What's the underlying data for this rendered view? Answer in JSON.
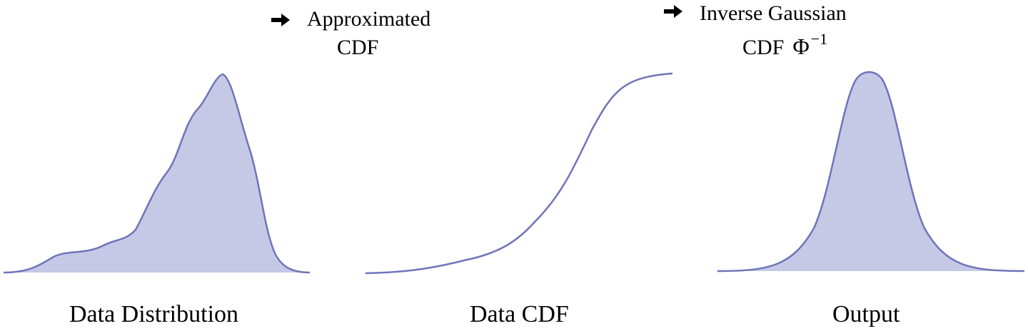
{
  "steps": {
    "step1": {
      "icon": "right-arrow-icon",
      "line1": "Approximated",
      "line2": "CDF"
    },
    "step2": {
      "icon": "right-arrow-icon",
      "line1": "Inverse Gaussian",
      "line2_text": "CDF",
      "symbol": "Φ",
      "exponent": "−1"
    }
  },
  "panels": {
    "distribution": {
      "label": "Data Distribution"
    },
    "cdf": {
      "label": "Data CDF"
    },
    "output": {
      "label": "Output"
    }
  },
  "colors": {
    "curve_stroke": "#6f74b8",
    "fill": "#c5c9e6",
    "text": "#000000"
  }
}
